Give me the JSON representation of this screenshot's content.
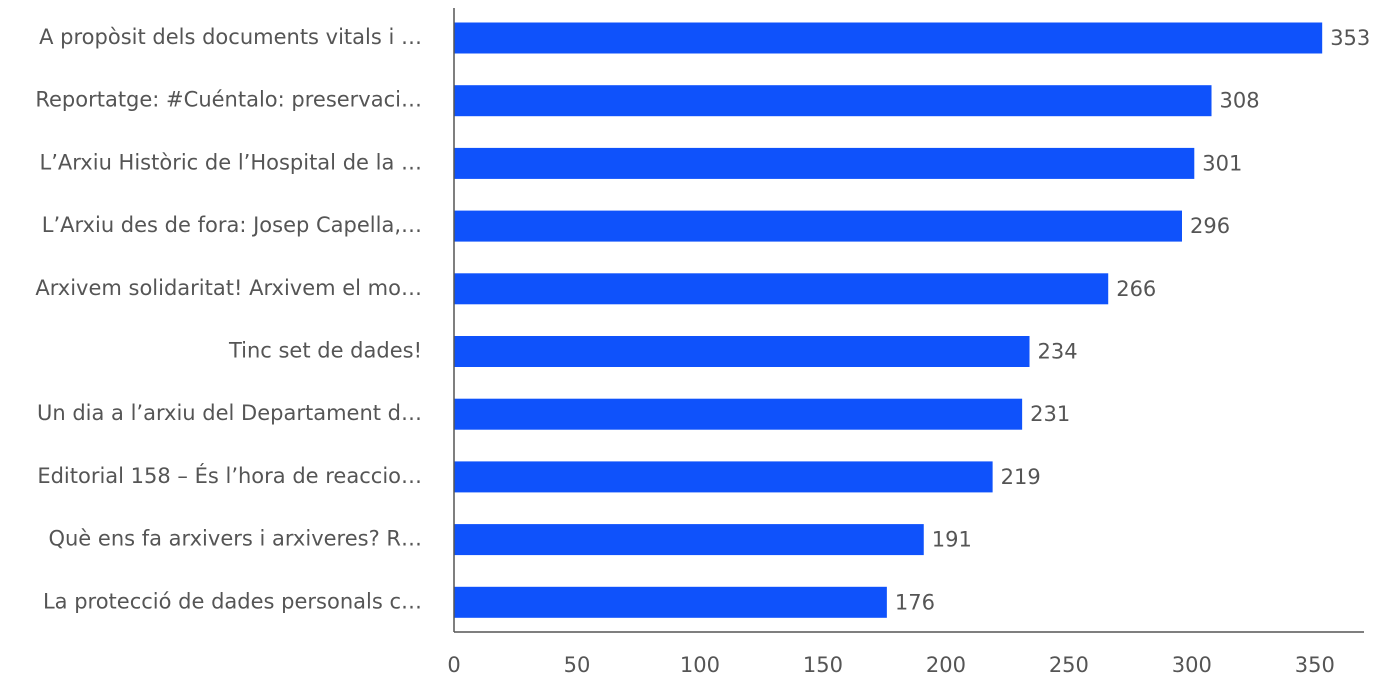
{
  "chart_data": {
    "type": "bar",
    "orientation": "horizontal",
    "categories": [
      "A propòsit dels documents vitals i …",
      "Reportatge: #Cuéntalo: preservaci…",
      "L’Arxiu Històric de l’Hospital de la …",
      "L’Arxiu des de fora: Josep Capella,…",
      "Arxivem solidaritat! Arxivem el mo…",
      "Tinc set de dades!",
      "Un dia a l’arxiu del Departament d…",
      "Editorial 158 – És l’hora de reaccio…",
      "Què ens fa arxivers i arxiveres? R…",
      "La protecció de dades personals c…"
    ],
    "values": [
      353,
      308,
      301,
      296,
      266,
      234,
      231,
      219,
      191,
      176
    ],
    "xlim": [
      0,
      370
    ],
    "xticks": [
      0,
      50,
      100,
      150,
      200,
      250,
      300,
      350
    ],
    "grid": false,
    "bar_color": "#0f52fb",
    "text_color": "#555555",
    "data_labels": true
  }
}
